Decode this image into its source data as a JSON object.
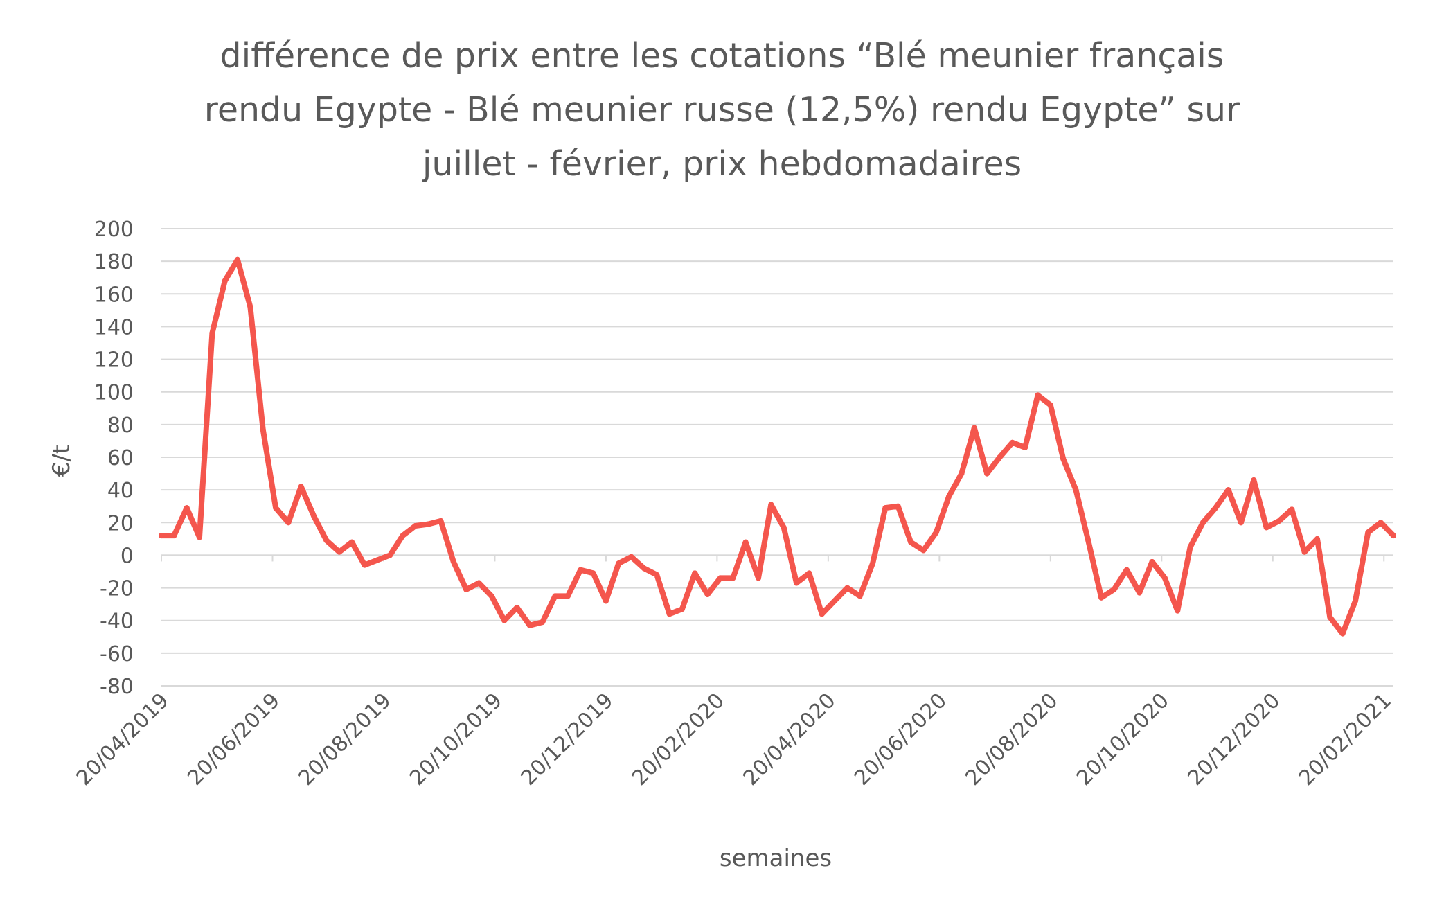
{
  "chart_data": {
    "type": "line",
    "title_lines": [
      "différence de prix entre les cotations “Blé meunier français",
      "rendu Egypte - Blé meunier russe (12,5%) rendu Egypte” sur",
      "juillet - février, prix hebdomadaires"
    ],
    "xlabel": "semaines",
    "ylabel": "€/t",
    "ylim": [
      -80,
      200
    ],
    "yticks": [
      200,
      180,
      160,
      140,
      120,
      100,
      80,
      60,
      40,
      20,
      0,
      -20,
      -40,
      -60,
      -80
    ],
    "x_tick_labels": [
      "20/04/2019",
      "20/06/2019",
      "20/08/2019",
      "20/10/2019",
      "20/12/2019",
      "20/02/2020",
      "20/04/2020",
      "20/06/2020",
      "20/08/2020",
      "20/10/2020",
      "20/12/2020",
      "20/02/2021"
    ],
    "grid": true,
    "color": "#f4564d",
    "series": [
      {
        "values": [
          12,
          12,
          29,
          11,
          136,
          168,
          181,
          152,
          77,
          29,
          20,
          42,
          24,
          9,
          2,
          8,
          -6,
          -3,
          0,
          12,
          18,
          19,
          21,
          -4,
          -21,
          -17,
          -25,
          -40,
          -32,
          -43,
          -41,
          -25,
          -25,
          -9,
          -11,
          -28,
          -5,
          -1,
          -8,
          -12,
          -36,
          -33,
          -11,
          -24,
          -14,
          -14,
          8,
          -14,
          31,
          17,
          -17,
          -11,
          -36,
          -28,
          -20,
          -25,
          -5,
          29,
          30,
          8,
          3,
          14,
          36,
          50,
          78,
          50,
          60,
          69,
          66,
          98,
          92,
          59,
          40,
          8,
          -26,
          -21,
          -9,
          -23,
          -4,
          -14,
          -34,
          5,
          20,
          29,
          40,
          20,
          46,
          17,
          21,
          28,
          2,
          10,
          -38,
          -48,
          -28,
          14,
          20,
          12
        ]
      }
    ]
  }
}
